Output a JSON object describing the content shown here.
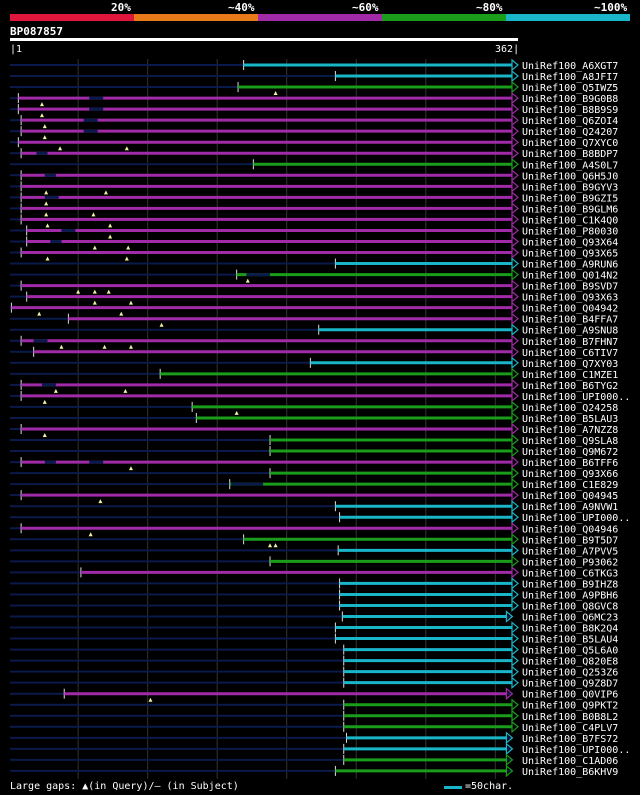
{
  "colors": {
    "bg": "#000000",
    "cyan": "#19b6c9",
    "green": "#1a9d1a",
    "purple": "#a02aa8",
    "orange": "#e87a1a",
    "red": "#e0163c",
    "navy": "#0a1a4a",
    "grid": "#333333"
  },
  "legend": {
    "labels": [
      "20%",
      "~40%",
      "~60%",
      "~80%",
      "~100%"
    ],
    "segments": [
      "red",
      "orange",
      "purple",
      "green",
      "cyan"
    ]
  },
  "query": {
    "id": "BP087857",
    "start_label": "1",
    "end_label": "362",
    "length": 362
  },
  "hits": [
    {
      "id": "UniRef100_A6XGT7",
      "color": "cyan",
      "start": 169,
      "end": 362,
      "q_gaps": [],
      "gaps": []
    },
    {
      "id": "UniRef100_A8JFI7",
      "color": "cyan",
      "start": 235,
      "end": 362,
      "q_gaps": [],
      "gaps": []
    },
    {
      "id": "UniRef100_Q5IWZ5",
      "color": "green",
      "start": 165,
      "end": 362,
      "q_gaps": [
        192
      ],
      "gaps": []
    },
    {
      "id": "UniRef100_B9G0B8",
      "color": "purple",
      "start": 7,
      "end": 362,
      "q_gaps": [
        24
      ],
      "gaps": [
        [
          58,
          68
        ]
      ]
    },
    {
      "id": "UniRef100_B8B9S9",
      "color": "purple",
      "start": 7,
      "end": 362,
      "q_gaps": [
        24
      ],
      "gaps": [
        [
          58,
          68
        ]
      ]
    },
    {
      "id": "UniRef100_Q6ZOI4",
      "color": "purple",
      "start": 9,
      "end": 362,
      "q_gaps": [
        26
      ],
      "gaps": [
        [
          54,
          64
        ]
      ]
    },
    {
      "id": "UniRef100_Q24207",
      "color": "purple",
      "start": 9,
      "end": 362,
      "q_gaps": [
        26
      ],
      "gaps": [
        [
          54,
          64
        ]
      ]
    },
    {
      "id": "UniRef100_Q7XYC0",
      "color": "purple",
      "start": 7,
      "end": 362,
      "q_gaps": [
        37,
        85
      ],
      "gaps": []
    },
    {
      "id": "UniRef100_B8BDP7",
      "color": "purple",
      "start": 9,
      "end": 362,
      "q_gaps": [],
      "gaps": [
        [
          20,
          28
        ]
      ]
    },
    {
      "id": "UniRef100_A4S0L7",
      "color": "green",
      "start": 176,
      "end": 362,
      "q_gaps": [],
      "gaps": []
    },
    {
      "id": "UniRef100_Q6H5J0",
      "color": "purple",
      "start": 9,
      "end": 362,
      "q_gaps": [],
      "gaps": [
        [
          26,
          34
        ]
      ]
    },
    {
      "id": "UniRef100_B9GYV3",
      "color": "purple",
      "start": 9,
      "end": 362,
      "q_gaps": [
        27,
        70
      ],
      "gaps": []
    },
    {
      "id": "UniRef100_B9GZI5",
      "color": "purple",
      "start": 9,
      "end": 362,
      "q_gaps": [
        27
      ],
      "gaps": [
        [
          26,
          36
        ]
      ]
    },
    {
      "id": "UniRef100_B9GLM6",
      "color": "purple",
      "start": 9,
      "end": 362,
      "q_gaps": [
        27,
        61
      ],
      "gaps": []
    },
    {
      "id": "UniRef100_C1K4Q0",
      "color": "purple",
      "start": 9,
      "end": 362,
      "q_gaps": [
        28,
        73
      ],
      "gaps": []
    },
    {
      "id": "UniRef100_P80030",
      "color": "purple",
      "start": 13,
      "end": 362,
      "q_gaps": [
        73
      ],
      "gaps": [
        [
          38,
          48
        ]
      ]
    },
    {
      "id": "UniRef100_Q93X64",
      "color": "purple",
      "start": 13,
      "end": 362,
      "q_gaps": [
        62,
        86
      ],
      "gaps": [
        [
          30,
          38
        ]
      ]
    },
    {
      "id": "UniRef100_Q93X65",
      "color": "purple",
      "start": 9,
      "end": 362,
      "q_gaps": [
        28,
        85
      ],
      "gaps": []
    },
    {
      "id": "UniRef100_A9RUN6",
      "color": "cyan",
      "start": 235,
      "end": 362,
      "q_gaps": [],
      "gaps": []
    },
    {
      "id": "UniRef100_Q014N2",
      "color": "green",
      "start": 164,
      "end": 362,
      "q_gaps": [
        172
      ],
      "gaps": [
        [
          171,
          188
        ]
      ]
    },
    {
      "id": "UniRef100_B9SVD7",
      "color": "purple",
      "start": 9,
      "end": 362,
      "q_gaps": [
        50,
        62,
        72
      ],
      "gaps": []
    },
    {
      "id": "UniRef100_Q93X63",
      "color": "purple",
      "start": 13,
      "end": 362,
      "q_gaps": [
        62,
        88
      ],
      "gaps": []
    },
    {
      "id": "UniRef100_Q04942",
      "color": "purple",
      "start": 2,
      "end": 362,
      "q_gaps": [
        22,
        81
      ],
      "gaps": []
    },
    {
      "id": "UniRef100_B4FFA7",
      "color": "purple",
      "start": 43,
      "end": 362,
      "q_gaps": [
        110
      ],
      "gaps": []
    },
    {
      "id": "UniRef100_A9SNU8",
      "color": "cyan",
      "start": 223,
      "end": 362,
      "q_gaps": [],
      "gaps": []
    },
    {
      "id": "UniRef100_B7FHN7",
      "color": "purple",
      "start": 9,
      "end": 362,
      "q_gaps": [
        38,
        69,
        88
      ],
      "gaps": [
        [
          18,
          28
        ]
      ]
    },
    {
      "id": "UniRef100_C6TIV7",
      "color": "purple",
      "start": 18,
      "end": 362,
      "q_gaps": [],
      "gaps": []
    },
    {
      "id": "UniRef100_Q7XY03",
      "color": "cyan",
      "start": 217,
      "end": 362,
      "q_gaps": [],
      "gaps": []
    },
    {
      "id": "UniRef100_C1MZE1",
      "color": "green",
      "start": 109,
      "end": 362,
      "q_gaps": [],
      "gaps": []
    },
    {
      "id": "UniRef100_B6TYG2",
      "color": "purple",
      "start": 9,
      "end": 362,
      "q_gaps": [
        34,
        84
      ],
      "gaps": [
        [
          24,
          34
        ]
      ]
    },
    {
      "id": "UniRef100_UPI000..",
      "color": "purple",
      "start": 9,
      "end": 362,
      "q_gaps": [
        26
      ],
      "gaps": []
    },
    {
      "id": "UniRef100_Q24258",
      "color": "green",
      "start": 132,
      "end": 362,
      "q_gaps": [
        164
      ],
      "gaps": []
    },
    {
      "id": "UniRef100_B5LAU3",
      "color": "green",
      "start": 135,
      "end": 362,
      "q_gaps": [],
      "gaps": []
    },
    {
      "id": "UniRef100_A7NZZ8",
      "color": "purple",
      "start": 9,
      "end": 362,
      "q_gaps": [
        26
      ],
      "gaps": []
    },
    {
      "id": "UniRef100_Q9SLA8",
      "color": "green",
      "start": 188,
      "end": 362,
      "q_gaps": [],
      "gaps": []
    },
    {
      "id": "UniRef100_Q9M672",
      "color": "green",
      "start": 188,
      "end": 362,
      "q_gaps": [],
      "gaps": []
    },
    {
      "id": "UniRef100_B6TFF6",
      "color": "purple",
      "start": 9,
      "end": 362,
      "q_gaps": [
        88
      ],
      "gaps": [
        [
          26,
          34
        ],
        [
          58,
          68
        ]
      ]
    },
    {
      "id": "UniRef100_Q93X66",
      "color": "green",
      "start": 188,
      "end": 362,
      "q_gaps": [],
      "gaps": []
    },
    {
      "id": "UniRef100_C1E829",
      "color": "green",
      "start": 159,
      "end": 362,
      "q_gaps": [],
      "gaps": [
        [
          160,
          183
        ]
      ]
    },
    {
      "id": "UniRef100_Q04945",
      "color": "purple",
      "start": 9,
      "end": 362,
      "q_gaps": [
        66
      ],
      "gaps": []
    },
    {
      "id": "UniRef100_A9NVW1",
      "color": "cyan",
      "start": 235,
      "end": 362,
      "q_gaps": [],
      "gaps": []
    },
    {
      "id": "UniRef100_UPI000..",
      "color": "cyan",
      "start": 238,
      "end": 362,
      "q_gaps": [],
      "gaps": []
    },
    {
      "id": "UniRef100_Q04946",
      "color": "purple",
      "start": 9,
      "end": 362,
      "q_gaps": [
        59
      ],
      "gaps": []
    },
    {
      "id": "UniRef100_B9T5D7",
      "color": "green",
      "start": 169,
      "end": 362,
      "q_gaps": [
        188,
        192
      ],
      "gaps": []
    },
    {
      "id": "UniRef100_A7PVV5",
      "color": "cyan",
      "start": 237,
      "end": 362,
      "q_gaps": [],
      "gaps": []
    },
    {
      "id": "UniRef100_P93062",
      "color": "green",
      "start": 188,
      "end": 362,
      "q_gaps": [],
      "gaps": []
    },
    {
      "id": "UniRef100_C6TKG3",
      "color": "purple",
      "start": 52,
      "end": 362,
      "q_gaps": [],
      "gaps": []
    },
    {
      "id": "UniRef100_B9IHZ8",
      "color": "cyan",
      "start": 238,
      "end": 362,
      "q_gaps": [],
      "gaps": []
    },
    {
      "id": "UniRef100_A9PBH6",
      "color": "cyan",
      "start": 238,
      "end": 362,
      "q_gaps": [],
      "gaps": []
    },
    {
      "id": "UniRef100_Q8GVC8",
      "color": "cyan",
      "start": 238,
      "end": 362,
      "q_gaps": [],
      "gaps": []
    },
    {
      "id": "UniRef100_Q6MC23",
      "color": "cyan",
      "start": 240,
      "end": 358,
      "q_gaps": [],
      "gaps": []
    },
    {
      "id": "UniRef100_B8K2Q4",
      "color": "cyan",
      "start": 235,
      "end": 362,
      "q_gaps": [],
      "gaps": []
    },
    {
      "id": "UniRef100_B5LAU4",
      "color": "cyan",
      "start": 235,
      "end": 362,
      "q_gaps": [],
      "gaps": []
    },
    {
      "id": "UniRef100_Q5L6A0",
      "color": "cyan",
      "start": 241,
      "end": 362,
      "q_gaps": [],
      "gaps": []
    },
    {
      "id": "UniRef100_Q820E8",
      "color": "cyan",
      "start": 241,
      "end": 362,
      "q_gaps": [],
      "gaps": []
    },
    {
      "id": "UniRef100_Q253Z6",
      "color": "cyan",
      "start": 241,
      "end": 362,
      "q_gaps": [],
      "gaps": []
    },
    {
      "id": "UniRef100_Q9Z8D7",
      "color": "cyan",
      "start": 241,
      "end": 362,
      "q_gaps": [],
      "gaps": []
    },
    {
      "id": "UniRef100_Q0VIP6",
      "color": "purple",
      "start": 40,
      "end": 358,
      "q_gaps": [
        102
      ],
      "gaps": []
    },
    {
      "id": "UniRef100_Q9PKT2",
      "color": "green",
      "start": 241,
      "end": 362,
      "q_gaps": [],
      "gaps": []
    },
    {
      "id": "UniRef100_B0B8L2",
      "color": "green",
      "start": 241,
      "end": 362,
      "q_gaps": [],
      "gaps": []
    },
    {
      "id": "UniRef100_C4PLV7",
      "color": "green",
      "start": 241,
      "end": 362,
      "q_gaps": [],
      "gaps": []
    },
    {
      "id": "UniRef100_B7FS72",
      "color": "cyan",
      "start": 243,
      "end": 358,
      "q_gaps": [],
      "gaps": []
    },
    {
      "id": "UniRef100_UPI000..",
      "color": "cyan",
      "start": 241,
      "end": 358,
      "q_gaps": [],
      "gaps": []
    },
    {
      "id": "UniRef100_C1AD06",
      "color": "green",
      "start": 241,
      "end": 358,
      "q_gaps": [],
      "gaps": []
    },
    {
      "id": "UniRef100_B6KHV9",
      "color": "green",
      "start": 235,
      "end": 358,
      "q_gaps": [],
      "gaps": []
    }
  ],
  "footer": {
    "gaps_note": "Large gaps: ▲(in Query)/– (in Subject)",
    "scale_note": "=50char."
  }
}
